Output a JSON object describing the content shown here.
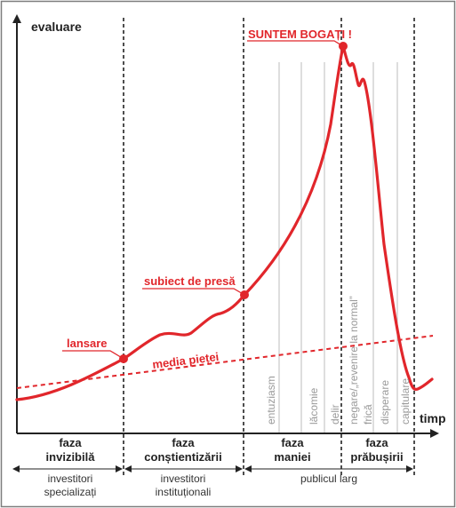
{
  "axes": {
    "y_label": "evaluare",
    "x_label": "timp"
  },
  "labels": {
    "peak": "SUNTEM BOGAȚI !",
    "press": "subiect de presă",
    "launch": "lansare",
    "market": "media pieței"
  },
  "substages": [
    "entuziasm",
    "lăcomie",
    "delir",
    "negare/„revenire la normal”",
    "frică",
    "disperare",
    "capitulare"
  ],
  "phases": [
    {
      "line1": "faza",
      "line2": "invizibilă",
      "audience1": "investitori",
      "audience2": "specializați"
    },
    {
      "line1": "faza",
      "line2": "conștientizării",
      "audience1": "investitori",
      "audience2": "instituționali"
    },
    {
      "line1": "faza",
      "line2": "maniei",
      "audience1": "publicul larg",
      "audience2": ""
    },
    {
      "line1": "faza",
      "line2": "prăbușirii",
      "audience1": "",
      "audience2": ""
    }
  ],
  "colors": {
    "curve": "#e1262b",
    "axis": "#222222",
    "guide": "#bcbcbc",
    "frame": "#7d7d7d"
  }
}
